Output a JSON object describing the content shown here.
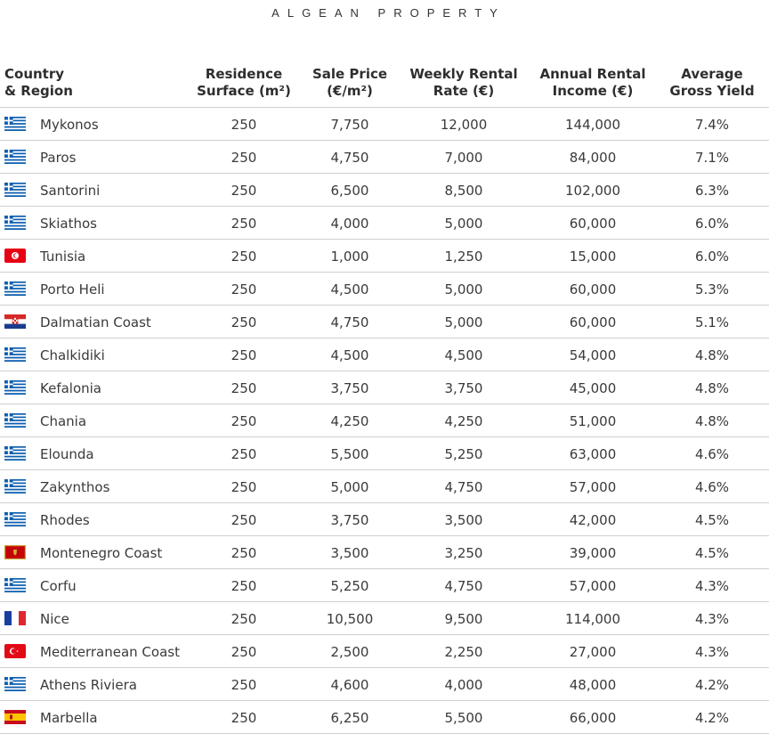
{
  "brand": "ALGEAN PROPERTY",
  "headers": {
    "country": "Country\n& Region",
    "surface": "Residence\nSurface (m²)",
    "price": "Sale Price\n(€/m²)",
    "weekly": "Weekly Rental\nRate (€)",
    "annual": "Annual Rental\nIncome (€)",
    "yield": "Average\nGross Yield"
  },
  "rows": [
    {
      "flag": "greece-flag-icon",
      "name": "Mykonos",
      "surface": "250",
      "price": "7,750",
      "weekly": "12,000",
      "annual": "144,000",
      "yield": "7.4%"
    },
    {
      "flag": "greece-flag-icon",
      "name": "Paros",
      "surface": "250",
      "price": "4,750",
      "weekly": "7,000",
      "annual": "84,000",
      "yield": "7.1%"
    },
    {
      "flag": "greece-flag-icon",
      "name": "Santorini",
      "surface": "250",
      "price": "6,500",
      "weekly": "8,500",
      "annual": "102,000",
      "yield": "6.3%"
    },
    {
      "flag": "greece-flag-icon",
      "name": "Skiathos",
      "surface": "250",
      "price": "4,000",
      "weekly": "5,000",
      "annual": "60,000",
      "yield": "6.0%"
    },
    {
      "flag": "tunisia-flag-icon",
      "name": "Tunisia",
      "surface": "250",
      "price": "1,000",
      "weekly": "1,250",
      "annual": "15,000",
      "yield": "6.0%"
    },
    {
      "flag": "greece-flag-icon",
      "name": "Porto Heli",
      "surface": "250",
      "price": "4,500",
      "weekly": "5,000",
      "annual": "60,000",
      "yield": "5.3%"
    },
    {
      "flag": "croatia-flag-icon",
      "name": "Dalmatian Coast",
      "surface": "250",
      "price": "4,750",
      "weekly": "5,000",
      "annual": "60,000",
      "yield": "5.1%"
    },
    {
      "flag": "greece-flag-icon",
      "name": "Chalkidiki",
      "surface": "250",
      "price": "4,500",
      "weekly": "4,500",
      "annual": "54,000",
      "yield": "4.8%"
    },
    {
      "flag": "greece-flag-icon",
      "name": "Kefalonia",
      "surface": "250",
      "price": "3,750",
      "weekly": "3,750",
      "annual": "45,000",
      "yield": "4.8%"
    },
    {
      "flag": "greece-flag-icon",
      "name": "Chania",
      "surface": "250",
      "price": "4,250",
      "weekly": "4,250",
      "annual": "51,000",
      "yield": "4.8%"
    },
    {
      "flag": "greece-flag-icon",
      "name": "Elounda",
      "surface": "250",
      "price": "5,500",
      "weekly": "5,250",
      "annual": "63,000",
      "yield": "4.6%"
    },
    {
      "flag": "greece-flag-icon",
      "name": "Zakynthos",
      "surface": "250",
      "price": "5,000",
      "weekly": "4,750",
      "annual": "57,000",
      "yield": "4.6%"
    },
    {
      "flag": "greece-flag-icon",
      "name": "Rhodes",
      "surface": "250",
      "price": "3,750",
      "weekly": "3,500",
      "annual": "42,000",
      "yield": "4.5%"
    },
    {
      "flag": "montenegro-flag-icon",
      "name": "Montenegro Coast",
      "surface": "250",
      "price": "3,500",
      "weekly": "3,250",
      "annual": "39,000",
      "yield": "4.5%"
    },
    {
      "flag": "greece-flag-icon",
      "name": "Corfu",
      "surface": "250",
      "price": "5,250",
      "weekly": "4,750",
      "annual": "57,000",
      "yield": "4.3%"
    },
    {
      "flag": "france-flag-icon",
      "name": "Nice",
      "surface": "250",
      "price": "10,500",
      "weekly": "9,500",
      "annual": "114,000",
      "yield": "4.3%"
    },
    {
      "flag": "turkey-flag-icon",
      "name": "Mediterranean Coast",
      "surface": "250",
      "price": "2,500",
      "weekly": "2,250",
      "annual": "27,000",
      "yield": "4.3%"
    },
    {
      "flag": "greece-flag-icon",
      "name": "Athens Riviera",
      "surface": "250",
      "price": "4,600",
      "weekly": "4,000",
      "annual": "48,000",
      "yield": "4.2%"
    },
    {
      "flag": "spain-flag-icon",
      "name": "Marbella",
      "surface": "250",
      "price": "6,250",
      "weekly": "5,500",
      "annual": "66,000",
      "yield": "4.2%"
    }
  ]
}
